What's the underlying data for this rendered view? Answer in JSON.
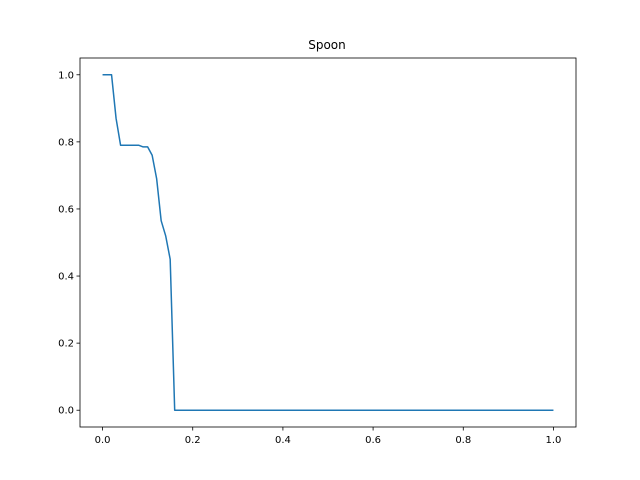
{
  "chart_data": {
    "type": "line",
    "title": "Spoon",
    "xlabel": "",
    "ylabel": "",
    "xlim": [
      -0.05,
      1.05
    ],
    "ylim": [
      -0.05,
      1.05
    ],
    "grid": false,
    "x_ticks": [
      0.0,
      0.2,
      0.4,
      0.6,
      0.8,
      1.0
    ],
    "x_tick_labels": [
      "0.0",
      "0.2",
      "0.4",
      "0.6",
      "0.8",
      "1.0"
    ],
    "y_ticks": [
      0.0,
      0.2,
      0.4,
      0.6,
      0.8,
      1.0
    ],
    "y_tick_labels": [
      "0.0",
      "0.2",
      "0.4",
      "0.6",
      "0.8",
      "1.0"
    ],
    "series": [
      {
        "color": "#1f77b4",
        "x": [
          0.0,
          0.02,
          0.03,
          0.04,
          0.06,
          0.08,
          0.09,
          0.1,
          0.11,
          0.12,
          0.13,
          0.14,
          0.15,
          0.16,
          0.2,
          0.4,
          0.6,
          0.8,
          1.0
        ],
        "y": [
          1.0,
          1.0,
          0.87,
          0.79,
          0.79,
          0.79,
          0.785,
          0.785,
          0.76,
          0.69,
          0.565,
          0.52,
          0.45,
          0.0,
          0.0,
          0.0,
          0.0,
          0.0,
          0.0
        ]
      }
    ]
  }
}
